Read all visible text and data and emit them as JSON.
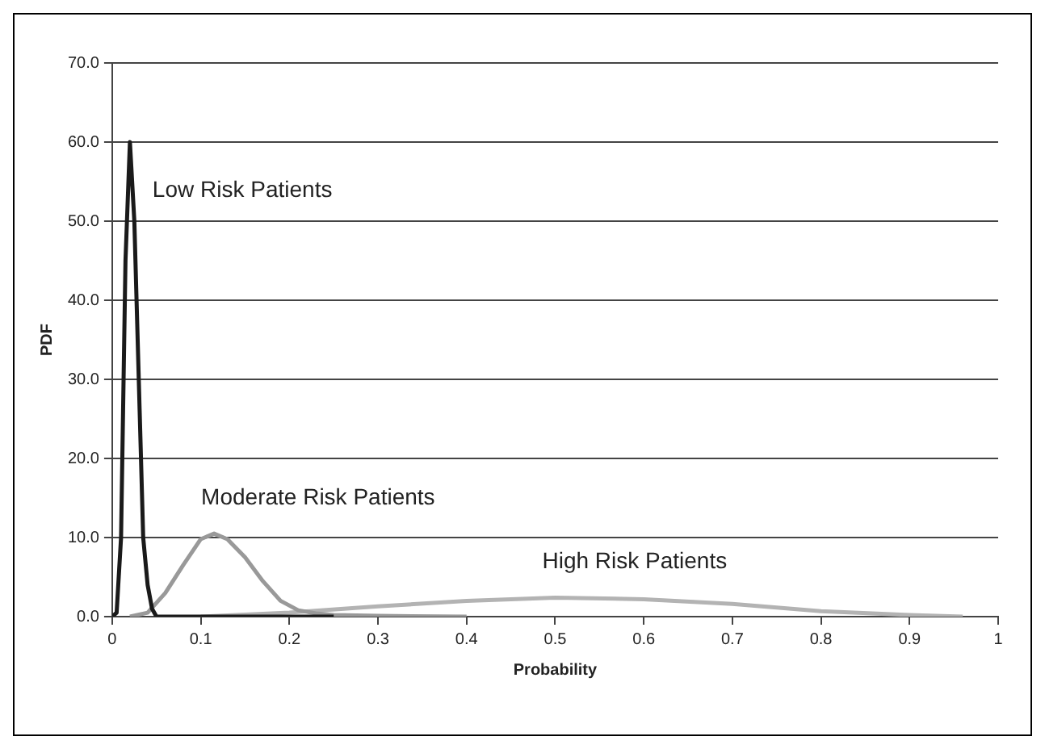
{
  "chart_data": {
    "type": "line",
    "xlabel": "Probability",
    "ylabel": "PDF",
    "xlim": [
      0,
      1
    ],
    "xticks": [
      0,
      0.1,
      0.2,
      0.3,
      0.4,
      0.5,
      0.6,
      0.7,
      0.8,
      0.9,
      1
    ],
    "ylim": [
      0,
      70
    ],
    "yticks": [
      {
        "value": 0,
        "label": "0.0"
      },
      {
        "value": 10,
        "label": "10.0"
      },
      {
        "value": 20,
        "label": "20.0"
      },
      {
        "value": 30,
        "label": "30.0"
      },
      {
        "value": 40,
        "label": "40.0"
      },
      {
        "value": 50,
        "label": "50.0"
      },
      {
        "value": 60,
        "label": "60.0"
      },
      {
        "value": 70,
        "label": "70.0"
      }
    ],
    "grid": "y",
    "legend": false,
    "marker": "none",
    "line_style": "solid",
    "series": [
      {
        "name": "Low Risk Patients",
        "color": "#1a1a1a",
        "x": [
          0,
          0.005,
          0.01,
          0.015,
          0.02,
          0.025,
          0.03,
          0.035,
          0.04,
          0.045,
          0.05,
          0.1,
          0.25
        ],
        "values": [
          0,
          0.5,
          10,
          45,
          60,
          50,
          30,
          10,
          4,
          1,
          0,
          0,
          0
        ]
      },
      {
        "name": "Moderate Risk Patients",
        "color": "#999999",
        "x": [
          0.02,
          0.04,
          0.06,
          0.08,
          0.1,
          0.115,
          0.13,
          0.15,
          0.17,
          0.19,
          0.21,
          0.23,
          0.25,
          0.3,
          0.4
        ],
        "values": [
          0,
          0.5,
          3,
          6.5,
          9.8,
          10.5,
          9.8,
          7.5,
          4.5,
          2,
          0.8,
          0.4,
          0.2,
          0.1,
          0
        ]
      },
      {
        "name": "High Risk Patients",
        "color": "#b3b3b3",
        "x": [
          0.1,
          0.2,
          0.3,
          0.4,
          0.5,
          0.6,
          0.7,
          0.8,
          0.9,
          0.96
        ],
        "values": [
          0,
          0.5,
          1.3,
          2,
          2.4,
          2.2,
          1.6,
          0.7,
          0.2,
          0
        ]
      }
    ]
  }
}
